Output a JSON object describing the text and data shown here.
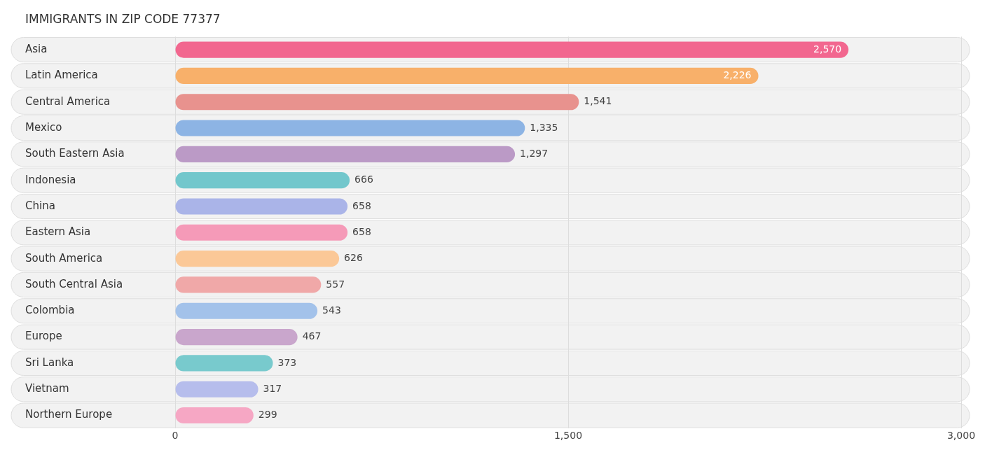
{
  "chart_data": {
    "type": "bar",
    "orientation": "horizontal",
    "title": "IMMIGRANTS IN ZIP CODE 77377",
    "categories": [
      "Asia",
      "Latin America",
      "Central America",
      "Mexico",
      "South Eastern Asia",
      "Indonesia",
      "China",
      "Eastern Asia",
      "South America",
      "South Central Asia",
      "Colombia",
      "Europe",
      "Sri Lanka",
      "Vietnam",
      "Northern Europe"
    ],
    "values": [
      2570,
      2226,
      1541,
      1335,
      1297,
      666,
      658,
      658,
      626,
      557,
      543,
      467,
      373,
      317,
      299
    ],
    "colors": [
      "#f2678f",
      "#f8b06a",
      "#e8928e",
      "#8db4e4",
      "#bb9ac6",
      "#72c7cc",
      "#aab4e8",
      "#f59ab8",
      "#fbc897",
      "#f0a8a8",
      "#a3c2ea",
      "#c9a6cc",
      "#78cacd",
      "#b6bdec",
      "#f6a7c4"
    ],
    "value_labels": [
      "2,570",
      "2,226",
      "1,541",
      "1,335",
      "1,297",
      "666",
      "658",
      "658",
      "626",
      "557",
      "543",
      "467",
      "373",
      "317",
      "299"
    ],
    "xlim": [
      0,
      3000
    ],
    "xticks": [
      0,
      {
        "value": 1500,
        "label": "1,500"
      },
      {
        "value": 3000,
        "label": "3,000"
      }
    ],
    "grid": "x"
  }
}
